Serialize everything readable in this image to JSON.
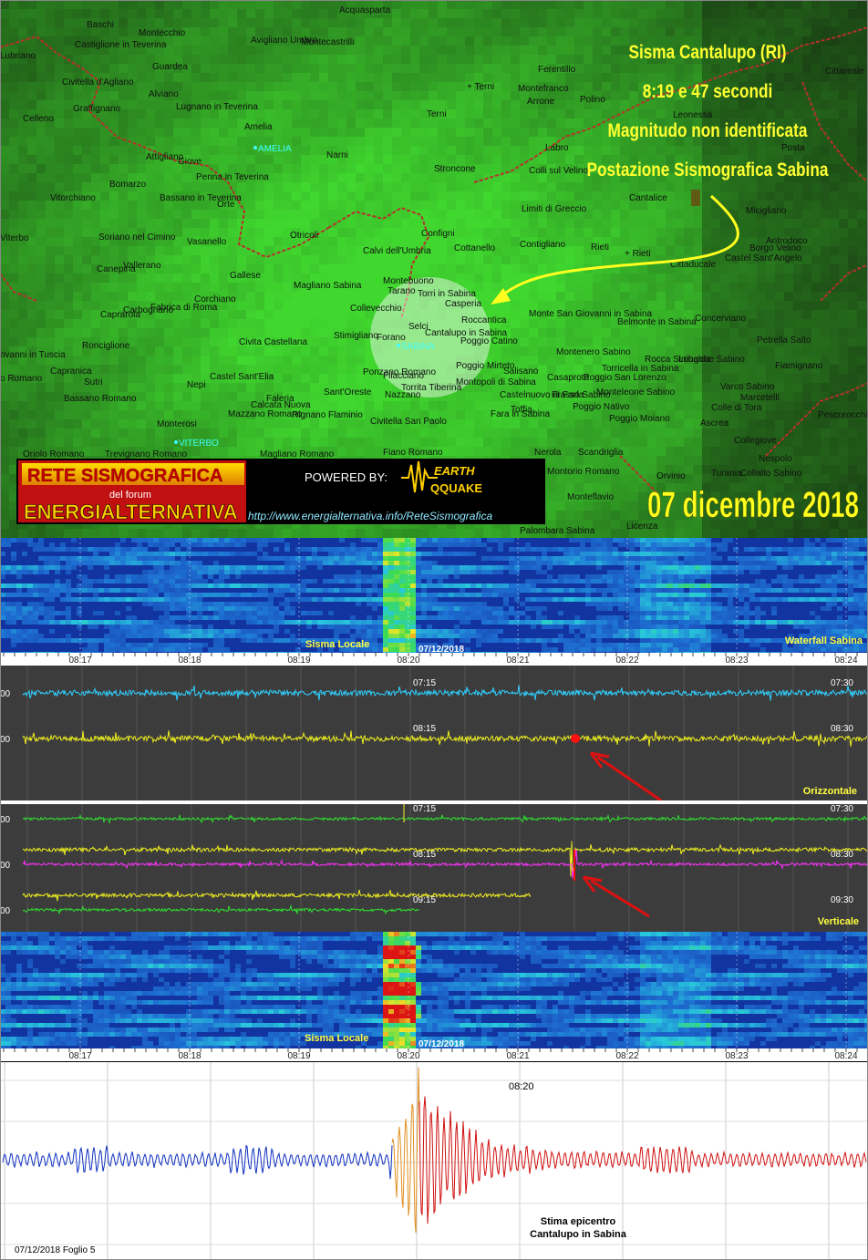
{
  "annotation": [
    "Sisma Cantalupo (RI)",
    "8:19 e 47 secondi",
    "Magnitudo non identificata",
    "Postazione Sismografica Sabina"
  ],
  "map_places": [
    "Acquasparta",
    "Baschi",
    "Montecchio",
    "Castiglione in Teverina",
    "Avigliano Umbro",
    "Montecastrilli",
    "Lubriano",
    "Guardea",
    "Ferentillo",
    "Cittareale",
    "Civitella d'Agliano",
    "Alviano",
    "+ Terni",
    "Montefranco",
    "Arrone",
    "Polino",
    "Graffignano",
    "Lugnano in Teverina",
    "Terni",
    "Leonessa",
    "Celleno",
    "Amelia",
    "AMELIA",
    "Narni",
    "Labro",
    "Posta",
    "Attigliano",
    "Giove",
    "Stroncone",
    "Colli sul Velino",
    "Penna in Teverina",
    "Bomarzo",
    "Vitorchiano",
    "Bassano in Teverina",
    "Orte",
    "Cantalice",
    "Limiti di Greccio",
    "Micigliano",
    "Configni",
    "Otricoli",
    "Soriano nel Cimino",
    "Viterbo",
    "Vasanello",
    "Antrodoco",
    "Contigliano",
    "Rieti",
    "Cottanello",
    "Borgo Velino",
    "Calvi dell'Umbria",
    "+ Rieti",
    "Castel Sant'Angelo",
    "Vallerano",
    "Cittaducale",
    "Canepina",
    "Gallese",
    "Montebuono",
    "Magliano Sabina",
    "Tarano",
    "Torri in Sabina",
    "Corchiano",
    "Casperia",
    "Fabrica di Roma",
    "Carbognano",
    "Collevecchio",
    "Caprarola",
    "Monte San Giovanni in Sabina",
    "Concerviano",
    "Roccantica",
    "Belmonte in Sabina",
    "Selci",
    "Cantalupo in Sabina",
    "Stimigliano",
    "Forano",
    "Poggio Catino",
    "Civita Castellana",
    "Petrella Salto",
    "Ronciglione",
    "SABINA",
    "Montenero Sabino",
    "ovanni in Tuscia",
    "Rocca Sinibalda",
    "Longone Sabino",
    "Poggio Mirteto",
    "Fiamignano",
    "Torricella in Sabina",
    "Capranica",
    "Salisano",
    "Ponzano Romano",
    "Castel Sant'Elia",
    "Filacciano",
    "Poggio San Lorenzo",
    "Casaprota",
    "o Romano",
    "Sutri",
    "Montopoli di Sabina",
    "Nepi",
    "Varco Sabino",
    "Torrita Tiberina",
    "Sant'Oreste",
    "Monteleone Sabino",
    "Nazzano",
    "Castelnuovo di Farfa",
    "Frasso Sabino",
    "Marcetelli",
    "Bassano Romano",
    "Faleria",
    "Calcata Nuova",
    "Poggio Nativo",
    "Colle di Tora",
    "Toffia",
    "Fara in Sabina",
    "Mazzano Romano",
    "Rignano Flaminio",
    "Poggio Moiano",
    "Pescorocchiano",
    "Civitella San Paolo",
    "Ascrea",
    "Monterosi",
    "Collegiove",
    "VITERBO",
    "Nerola",
    "Scandriglia",
    "Fiano Romano",
    "Magliano Romano",
    "Trevignano Romano",
    "Oriolo Romano",
    "Nespolo",
    "Montorio Romano",
    "Orvinio",
    "Turania",
    "Collalto Sabino",
    "Monteflavio",
    "Licenza",
    "Palombara Sabina"
  ],
  "banner": {
    "title": "RETE SISMOGRAFICA",
    "subtitle": "del forum",
    "brand": "ENERGIALTERNATIVA",
    "powered_by": "POWERED BY:",
    "logo_top": "EARTH",
    "logo_bottom": "QQUAKE",
    "url": "http://www.energialternativa.info/ReteSismografica"
  },
  "date": "07 dicembre 2018",
  "waterfall": {
    "label": "Sisma Locale",
    "date": "07/12/2018",
    "station": "Waterfall Sabina"
  },
  "time_ticks": [
    "08:17",
    "08:18",
    "08:19",
    "08:20",
    "08:21",
    "08:22",
    "08:23",
    "08:24"
  ],
  "horizontal": {
    "scale_label": "00",
    "rows": [
      [
        "07:15",
        "07:30"
      ],
      [
        "08:15",
        "08:30"
      ]
    ],
    "label": "Orizzontale"
  },
  "vertical": {
    "scale_label": "00",
    "rows": [
      [
        "07:15",
        "07:30"
      ],
      [
        "08:15",
        "08:30"
      ],
      [
        "09:15",
        "09:30"
      ]
    ],
    "label": "Verticale"
  },
  "spectrogram": {
    "label": "Sisma Locale",
    "date": "07/12/2018"
  },
  "seismogram": {
    "time": "08:20",
    "note": [
      "Stima epicentro",
      "Cantalupo in Sabina"
    ],
    "footer": "07/12/2018 Foglio 5"
  }
}
